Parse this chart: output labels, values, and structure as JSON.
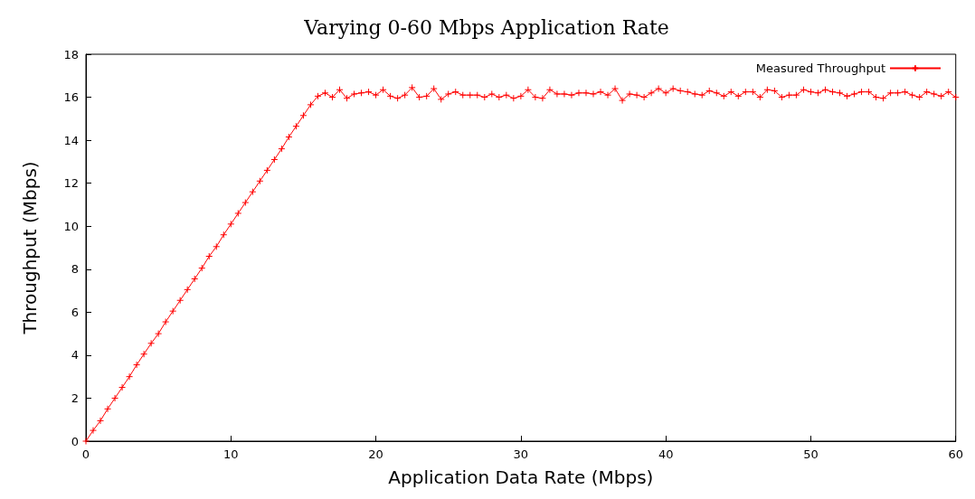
{
  "chart_data": {
    "type": "line",
    "title": "Varying 0-60 Mbps Application Rate",
    "xlabel": "Application Data Rate (Mbps)",
    "ylabel": "Throughput (Mbps)",
    "xlim": [
      0,
      60
    ],
    "xticks": [
      0,
      10,
      20,
      30,
      40,
      50,
      60
    ],
    "ylim": [
      0,
      18
    ],
    "yticks": [
      0,
      2,
      4,
      6,
      8,
      10,
      12,
      14,
      16,
      18
    ],
    "grid": false,
    "legend": "top right",
    "marker": "cross",
    "line_style": "solid",
    "series": [
      {
        "name": "Measured Throughput",
        "color": "#ff0000",
        "x": [
          0,
          0.5,
          1,
          1.5,
          2,
          2.5,
          3,
          3.5,
          4,
          4.5,
          5,
          5.5,
          6,
          6.5,
          7,
          7.5,
          8,
          8.5,
          9,
          9.5,
          10,
          10.5,
          11,
          11.5,
          12,
          12.5,
          13,
          13.5,
          14,
          14.5,
          15,
          15.5,
          16,
          16.5,
          17,
          17.5,
          18,
          18.5,
          19,
          19.5,
          20,
          20.5,
          21,
          21.5,
          22,
          22.5,
          23,
          23.5,
          24,
          24.5,
          25,
          25.5,
          26,
          26.5,
          27,
          27.5,
          28,
          28.5,
          29,
          29.5,
          30,
          30.5,
          31,
          31.5,
          32,
          32.5,
          33,
          33.5,
          34,
          34.5,
          35,
          35.5,
          36,
          36.5,
          37,
          37.5,
          38,
          38.5,
          39,
          39.5,
          40,
          40.5,
          41,
          41.5,
          42,
          42.5,
          43,
          43.5,
          44,
          44.5,
          45,
          45.5,
          46,
          46.5,
          47,
          47.5,
          48,
          48.5,
          49,
          49.5,
          50,
          50.5,
          51,
          51.5,
          52,
          52.5,
          53,
          53.5,
          54,
          54.5,
          55,
          55.5,
          56,
          56.5,
          57,
          57.5,
          58,
          58.5,
          59,
          59.5,
          60
        ],
        "values": [
          0,
          0.5,
          0.95,
          1.5,
          2,
          2.5,
          3,
          3.55,
          4.05,
          4.55,
          5,
          5.55,
          6.05,
          6.55,
          7.05,
          7.55,
          8.05,
          8.6,
          9.05,
          9.6,
          10.1,
          10.6,
          11.1,
          11.6,
          12.1,
          12.6,
          13.1,
          13.6,
          14.15,
          14.65,
          15.15,
          15.65,
          16.05,
          16.2,
          16,
          16.35,
          15.95,
          16.15,
          16.2,
          16.25,
          16.1,
          16.35,
          16.05,
          15.95,
          16.1,
          16.45,
          16,
          16.05,
          16.4,
          15.9,
          16.15,
          16.25,
          16.1,
          16.1,
          16.1,
          16,
          16.15,
          16,
          16.1,
          15.95,
          16.05,
          16.35,
          16,
          15.95,
          16.35,
          16.15,
          16.15,
          16.1,
          16.2,
          16.2,
          16.15,
          16.25,
          16.1,
          16.4,
          15.85,
          16.15,
          16.1,
          16,
          16.2,
          16.4,
          16.2,
          16.4,
          16.3,
          16.25,
          16.15,
          16.1,
          16.3,
          16.2,
          16.05,
          16.25,
          16.05,
          16.25,
          16.25,
          16,
          16.35,
          16.3,
          16,
          16.1,
          16.1,
          16.35,
          16.25,
          16.2,
          16.35,
          16.25,
          16.2,
          16.05,
          16.15,
          16.25,
          16.25,
          16,
          15.95,
          16.2,
          16.2,
          16.25,
          16.1,
          16,
          16.25,
          16.15,
          16.05,
          16.25,
          16
        ]
      }
    ]
  }
}
